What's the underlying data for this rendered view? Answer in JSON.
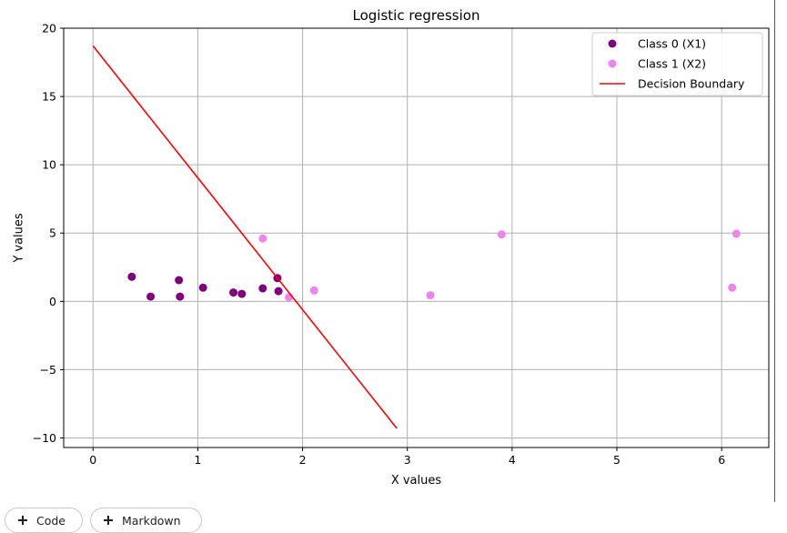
{
  "toolbar": {
    "code_label": "Code",
    "markdown_label": "Markdown"
  },
  "chart_data": {
    "type": "scatter",
    "title": "Logistic regression",
    "xlabel": "X values",
    "ylabel": "Y values",
    "xlim": [
      -0.28,
      6.45
    ],
    "ylim": [
      -10.7,
      20.0
    ],
    "xticks": [
      0,
      1,
      2,
      3,
      4,
      5,
      6
    ],
    "yticks": [
      -10,
      -5,
      0,
      5,
      10,
      15,
      20
    ],
    "grid": true,
    "legend_position": "top-right",
    "series": [
      {
        "name": "Class 0 (X1)",
        "kind": "scatter",
        "color": "#800080",
        "points": [
          [
            0.37,
            1.8
          ],
          [
            0.55,
            0.35
          ],
          [
            0.82,
            1.55
          ],
          [
            0.83,
            0.35
          ],
          [
            1.05,
            1.0
          ],
          [
            1.34,
            0.65
          ],
          [
            1.42,
            0.55
          ],
          [
            1.62,
            0.95
          ],
          [
            1.76,
            1.7
          ],
          [
            1.77,
            0.75
          ]
        ]
      },
      {
        "name": "Class 1 (X2)",
        "kind": "scatter",
        "color": "#ee82ee",
        "points": [
          [
            1.62,
            4.6
          ],
          [
            1.87,
            0.3
          ],
          [
            2.11,
            0.8
          ],
          [
            3.22,
            0.45
          ],
          [
            3.9,
            4.9
          ],
          [
            6.1,
            1.0
          ],
          [
            6.14,
            4.95
          ]
        ]
      },
      {
        "name": "Decision Boundary",
        "kind": "line",
        "color": "#ff0000",
        "points": [
          [
            0.0,
            18.7
          ],
          [
            2.9,
            -9.3
          ]
        ]
      }
    ]
  }
}
